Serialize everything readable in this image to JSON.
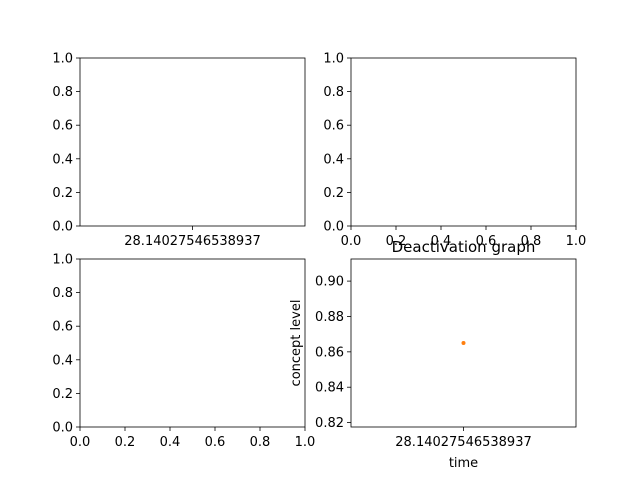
{
  "chart_data": [
    {
      "type": "scatter",
      "position": "top-left",
      "title": "",
      "xlabel": "",
      "ylabel": "",
      "x_categories": [
        "28.14027546538937"
      ],
      "ylim": [
        0.0,
        1.0
      ],
      "y_ticks": [
        "0.0",
        "0.2",
        "0.4",
        "0.6",
        "0.8",
        "1.0"
      ],
      "series": []
    },
    {
      "type": "scatter",
      "position": "top-right",
      "title": "",
      "xlabel": "",
      "ylabel": "",
      "xlim": [
        0.0,
        1.0
      ],
      "ylim": [
        0.0,
        1.0
      ],
      "x_ticks": [
        "0.0",
        "0.2",
        "0.4",
        "0.6",
        "0.8",
        "1.0"
      ],
      "y_ticks": [
        "0.0",
        "0.2",
        "0.4",
        "0.6",
        "0.8",
        "1.0"
      ],
      "series": []
    },
    {
      "type": "scatter",
      "position": "bottom-left",
      "title": "",
      "xlabel": "",
      "ylabel": "",
      "xlim": [
        0.0,
        1.0
      ],
      "ylim": [
        0.0,
        1.0
      ],
      "x_ticks": [
        "0.0",
        "0.2",
        "0.4",
        "0.6",
        "0.8",
        "1.0"
      ],
      "y_ticks": [
        "0.0",
        "0.2",
        "0.4",
        "0.6",
        "0.8",
        "1.0"
      ],
      "series": []
    },
    {
      "type": "scatter",
      "position": "bottom-right",
      "title": "Deactivation graph",
      "xlabel": "time",
      "ylabel": "concept level",
      "x_categories": [
        "28.14027546538937"
      ],
      "ylim": [
        0.8175,
        0.9125
      ],
      "y_ticks": [
        "0.82",
        "0.84",
        "0.86",
        "0.88",
        "0.90"
      ],
      "series": [
        {
          "name": "concept level",
          "color": "#ff7f0e",
          "points": [
            {
              "x": "28.14027546538937",
              "y": 0.865
            }
          ]
        }
      ]
    }
  ]
}
